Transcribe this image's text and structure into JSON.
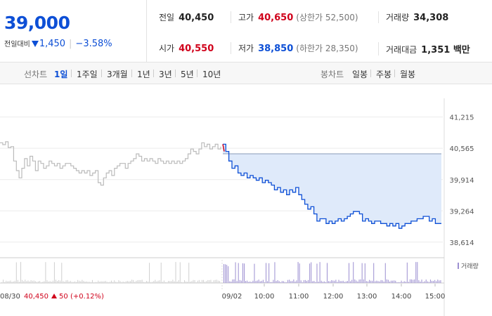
{
  "quote": {
    "price": "39,000",
    "change_label": "전일대비",
    "change_value": "1,450",
    "change_percent": "−3.58%"
  },
  "stats": [
    {
      "key": "전일",
      "value": "40,450",
      "color": "default"
    },
    {
      "key": "고가",
      "value": "40,650",
      "color": "red",
      "sub": "(상한가 52,500)"
    },
    {
      "key": "거래량",
      "value": "34,308",
      "color": "default"
    },
    {
      "key": "시가",
      "value": "40,550",
      "color": "red"
    },
    {
      "key": "저가",
      "value": "38,850",
      "color": "blue",
      "sub": "(하한가 28,350)"
    },
    {
      "key": "거래대금",
      "value": "1,351 백만",
      "color": "default"
    }
  ],
  "line_tabs": {
    "label": "선차트",
    "items": [
      "1일",
      "1주일",
      "3개월",
      "1년",
      "3년",
      "5년",
      "10년"
    ],
    "active": 0
  },
  "candle_tabs": {
    "label": "봉차트",
    "items": [
      "일봉",
      "주봉",
      "월봉"
    ]
  },
  "colors": {
    "accent": "#0d4fd6",
    "up": "#d0021b",
    "fill": "#dfeafa",
    "prev_day": "#bbbbbb",
    "volume": "#9c8fd1"
  },
  "chart_data": {
    "type": "line",
    "y_ticks": [
      "41,215",
      "40,565",
      "39,914",
      "39,264",
      "38,614"
    ],
    "y_tick_values": [
      41215,
      40565,
      39914,
      39264,
      38614
    ],
    "ylim": [
      38450,
      41400
    ],
    "x_ticks": [
      "09/02",
      "10:00",
      "11:00",
      "12:00",
      "13:00",
      "14:00",
      "15:00"
    ],
    "prev_close": 40450,
    "previous_day_series": [
      40680,
      40640,
      40700,
      40580,
      40600,
      40300,
      40100,
      39950,
      40150,
      40350,
      40200,
      40400,
      40300,
      40100,
      40300,
      40250,
      40150,
      40200,
      40300,
      40250,
      40200,
      40250,
      40150,
      40200,
      40250,
      40250,
      40200,
      40150,
      40100,
      40050,
      40100,
      40050,
      40100,
      40000,
      40050,
      40100,
      39850,
      39800,
      39950,
      40050,
      40100,
      40000,
      40150,
      40200,
      40250,
      40250,
      40150,
      40250,
      40300,
      40350,
      40450,
      40400,
      40300,
      40350,
      40300,
      40350,
      40300,
      40250,
      40350,
      40300,
      40250,
      40300,
      40250,
      40300,
      40250,
      40300,
      40250,
      40300,
      40350,
      40450,
      40550,
      40500,
      40450,
      40550,
      40680,
      40600,
      40650,
      40550,
      40600,
      40650,
      40550,
      40600
    ],
    "today_series": [
      40650,
      40500,
      40300,
      40150,
      40200,
      40050,
      40000,
      40050,
      39950,
      40000,
      39950,
      39900,
      39950,
      39850,
      39900,
      39850,
      39800,
      39700,
      39750,
      39650,
      39700,
      39600,
      39700,
      39650,
      39750,
      39600,
      39500,
      39400,
      39300,
      39350,
      39200,
      39050,
      39100,
      39100,
      39000,
      39050,
      39000,
      39050,
      39100,
      39050,
      39100,
      39150,
      39200,
      39250,
      39250,
      39200,
      39050,
      39100,
      39050,
      39000,
      39050,
      39050,
      39000,
      39000,
      38950,
      39000,
      38950,
      39000,
      38900,
      38950,
      39000,
      39000,
      39050,
      39050,
      39100,
      39100,
      39150,
      39150,
      39050,
      39100,
      39000,
      39000,
      39000
    ],
    "legend": "거래량"
  },
  "prev_day_footer": {
    "date": "08/30",
    "close": "40,450",
    "change": "50",
    "pct": "(+0.12%)"
  }
}
